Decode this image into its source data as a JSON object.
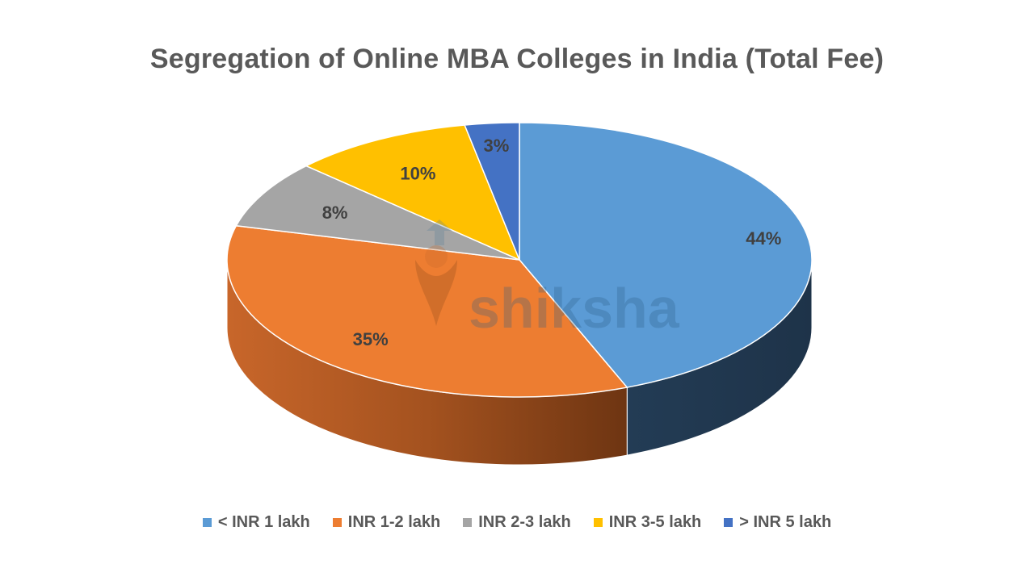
{
  "chart_data": {
    "type": "pie",
    "title": "Segregation of Online MBA Colleges in India (Total Fee)",
    "categories": [
      "< INR 1 lakh",
      "INR 1-2 lakh",
      "INR 2-3 lakh",
      "INR 3-5 lakh",
      "> INR 5 lakh"
    ],
    "values": [
      44,
      35,
      8,
      10,
      3
    ],
    "data_labels": [
      "44%",
      "35%",
      "8%",
      "10%",
      "3%"
    ],
    "colors": [
      "#5B9BD5",
      "#ED7D31",
      "#A5A5A5",
      "#FFC000",
      "#4472C4"
    ],
    "style": "3d",
    "legend_position": "bottom"
  },
  "watermark": {
    "text": "shiksha"
  }
}
